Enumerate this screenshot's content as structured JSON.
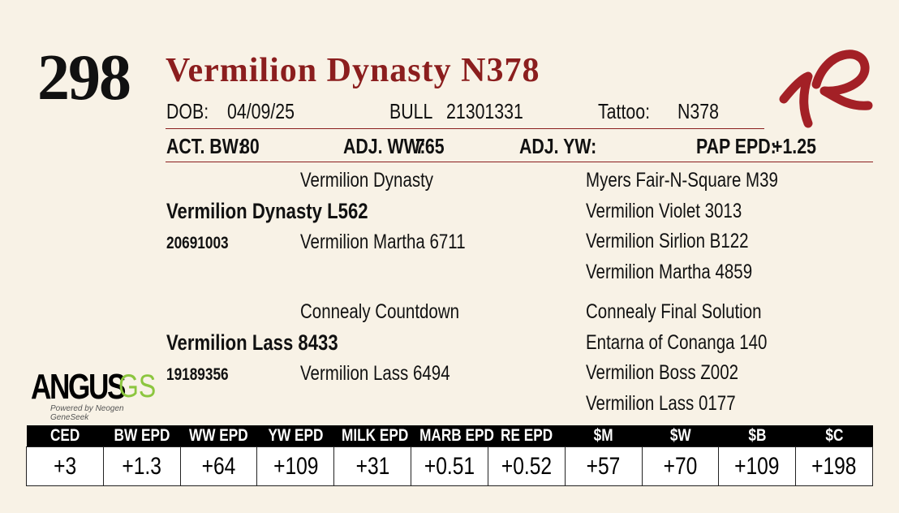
{
  "lot": "298",
  "name": "Vermilion Dynasty N378",
  "info": {
    "dob_label": "DOB:",
    "dob": "04/09/25",
    "sex": "BULL",
    "registration": "21301331",
    "tattoo_label": "Tattoo:",
    "tattoo": "N378"
  },
  "stats": {
    "bw_label": "ACT. BW:",
    "bw": "80",
    "ww_label": "ADJ. WW:",
    "ww": "765",
    "yw_label": "ADJ. YW:",
    "pap_label": "PAP EPD:",
    "pap": "+1.25"
  },
  "sire": {
    "name": "Vermilion Dynasty L562",
    "registration": "20691003",
    "sire": "Vermilion Dynasty",
    "dam": "Vermilion Martha 6711",
    "grandparents": [
      "Myers Fair-N-Square M39",
      "Vermilion Violet 3013",
      "Vermilion Sirlion B122",
      "Vermilion Martha 4859"
    ]
  },
  "dam": {
    "name": "Vermilion Lass 8433",
    "registration": "19189356",
    "sire": "Connealy Countdown",
    "dam": "Vermilion Lass 6494",
    "grandparents": [
      "Connealy Final Solution",
      "Entarna of Conanga 140",
      "Vermilion Boss Z002",
      "Vermilion Lass 0177"
    ]
  },
  "logo": {
    "angus": "ANGUS",
    "gs": "GS",
    "tagline": "Powered by Neogen GeneSeek"
  },
  "table": {
    "headers": [
      "CED",
      "BW EPD",
      "WW EPD",
      "YW EPD",
      "MILK EPD",
      "MARB EPD",
      "RE EPD",
      "$M",
      "$W",
      "$B",
      "$C"
    ],
    "values": [
      "+3",
      "+1.3",
      "+64",
      "+109",
      "+31",
      "+0.51",
      "+0.52",
      "+57",
      "+70",
      "+109",
      "+198"
    ]
  }
}
